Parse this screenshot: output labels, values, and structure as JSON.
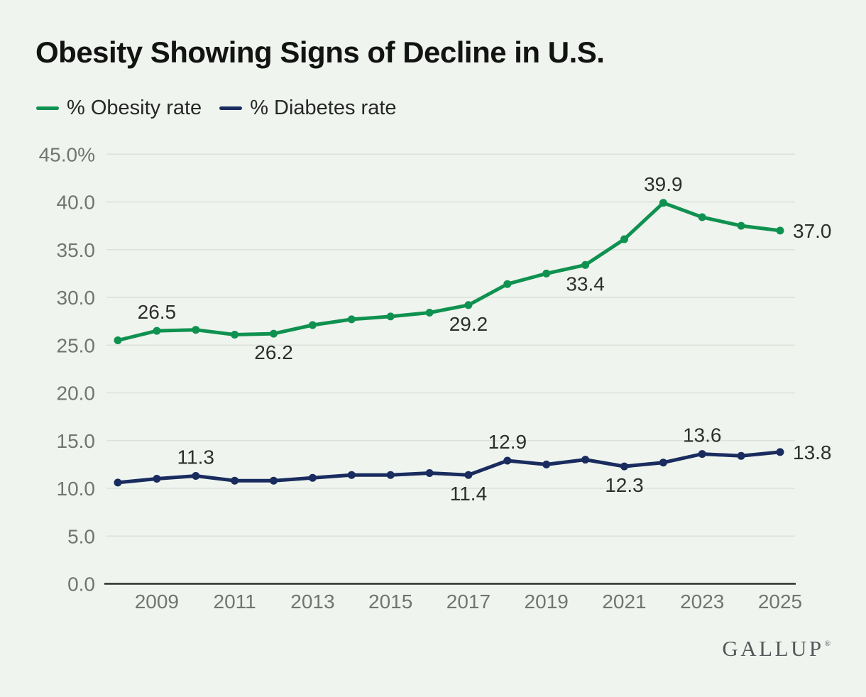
{
  "header": {
    "title": "Obesity Showing Signs of Decline in U.S."
  },
  "legend": {
    "items": [
      {
        "label": "% Obesity rate",
        "color": "#0f9150"
      },
      {
        "label": "% Diabetes rate",
        "color": "#1a2c5f"
      }
    ]
  },
  "chart_data": {
    "type": "line",
    "title": "Obesity Showing Signs of Decline in U.S.",
    "x": [
      2008,
      2009,
      2010,
      2011,
      2012,
      2013,
      2014,
      2015,
      2016,
      2017,
      2018,
      2019,
      2020,
      2021,
      2022,
      2023,
      2024,
      2025
    ],
    "series": [
      {
        "name": "% Obesity rate",
        "color": "#0f9150",
        "values": [
          25.5,
          26.5,
          26.6,
          26.1,
          26.2,
          27.1,
          27.7,
          28.0,
          28.4,
          29.2,
          31.4,
          32.5,
          33.4,
          36.1,
          39.9,
          38.4,
          37.5,
          37.0
        ],
        "point_labels": [
          {
            "x": 2009,
            "text": "26.5",
            "pos": "above"
          },
          {
            "x": 2012,
            "text": "26.2",
            "pos": "below"
          },
          {
            "x": 2017,
            "text": "29.2",
            "pos": "below"
          },
          {
            "x": 2020,
            "text": "33.4",
            "pos": "below"
          },
          {
            "x": 2022,
            "text": "39.9",
            "pos": "above"
          },
          {
            "x": 2025,
            "text": "37.0",
            "pos": "right"
          }
        ]
      },
      {
        "name": "% Diabetes rate",
        "color": "#1a2c5f",
        "values": [
          10.6,
          11.0,
          11.3,
          10.8,
          10.8,
          11.1,
          11.4,
          11.4,
          11.6,
          11.4,
          12.9,
          12.5,
          13.0,
          12.3,
          12.7,
          13.6,
          13.4,
          13.8
        ],
        "point_labels": [
          {
            "x": 2010,
            "text": "11.3",
            "pos": "above"
          },
          {
            "x": 2017,
            "text": "11.4",
            "pos": "below"
          },
          {
            "x": 2018,
            "text": "12.9",
            "pos": "above"
          },
          {
            "x": 2021,
            "text": "12.3",
            "pos": "below"
          },
          {
            "x": 2023,
            "text": "13.6",
            "pos": "above"
          },
          {
            "x": 2025,
            "text": "13.8",
            "pos": "right"
          }
        ]
      }
    ],
    "y_axis": {
      "min": 0,
      "max": 45,
      "tick_values": [
        45,
        40,
        35,
        30,
        25,
        20,
        15,
        10,
        5,
        0
      ],
      "tick_labels": [
        "45.0%",
        "40.0",
        "35.0",
        "30.0",
        "25.0",
        "20.0",
        "15.0",
        "10.0",
        "5.0",
        "0.0"
      ]
    },
    "x_axis": {
      "tick_values": [
        2009,
        2011,
        2013,
        2015,
        2017,
        2019,
        2021,
        2023,
        2025
      ],
      "tick_labels": [
        "2009",
        "2011",
        "2013",
        "2015",
        "2017",
        "2019",
        "2021",
        "2023",
        "2025"
      ]
    },
    "grid": "horizontal",
    "legend_position": "top-left",
    "colors": {
      "background": "#eff4ee",
      "gridline": "#dce2da",
      "axis_line": "#2d2d2d",
      "tick_text": "#71756f",
      "data_label_text": "#2e2e2e",
      "obesity": "#0f9150",
      "diabetes": "#1a2c5f"
    }
  },
  "footer": {
    "brand": "GALLUP",
    "registered_mark": "®"
  }
}
